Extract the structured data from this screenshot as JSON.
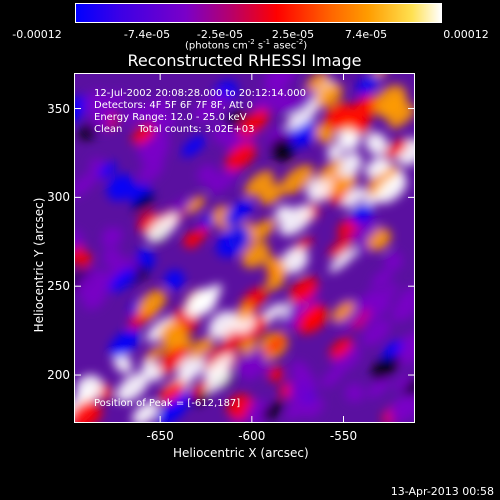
{
  "colorbar": {
    "ticks": [
      "-0.00012",
      "-7.4e-05",
      "-2.5e-05",
      "2.5e-05",
      "7.4e-05",
      "0.00012"
    ],
    "tick_values": [
      -0.00012,
      -7.4e-05,
      -2.5e-05,
      2.5e-05,
      7.4e-05,
      0.00012
    ],
    "units_prefix": "(photons cm",
    "units_exp1": "-2",
    "units_mid": " s",
    "units_exp2": "-1",
    "units_mid2": " asec",
    "units_exp3": "-2",
    "units_suffix": ")"
  },
  "chart_data": {
    "type": "heatmap",
    "title": "Reconstructed RHESSI Image",
    "xlabel": "Heliocentric X (arcsec)",
    "ylabel": "Heliocentric Y (arcsec)",
    "xlim": [
      -697,
      -511
    ],
    "ylim": [
      173,
      370
    ],
    "x_ticks": [
      -650,
      -600,
      -550
    ],
    "y_ticks": [
      200,
      250,
      300,
      350
    ],
    "annotations": [
      "12-Jul-2002 20:08:28.000 to 20:12:14.000",
      "Detectors: 4F 5F 6F 7F 8F, Att 0",
      "Energy Range: 12.0 - 25.0 keV",
      "Clean     Total counts: 3.02E+03"
    ],
    "peak_label": "Position of Peak = [",
    "peak_value": "-612,187]",
    "colormap": [
      "#0000ff",
      "#7a00c8",
      "#ff0000",
      "#ff9c00",
      "#ffffff"
    ],
    "colorbar_range": [
      -0.00012,
      0.00012
    ]
  },
  "footer": {
    "timestamp": "13-Apr-2013 00:58"
  }
}
